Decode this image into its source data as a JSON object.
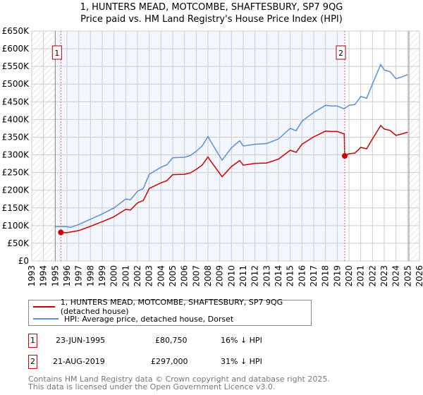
{
  "chart_data": {
    "type": "line",
    "title": "1, HUNTERS MEAD, MOTCOMBE, SHAFTESBURY, SP7 9QG",
    "subtitle": "Price paid vs. HM Land Registry's House Price Index (HPI)",
    "xlim": [
      1993,
      2026
    ],
    "ylim": [
      0,
      650000
    ],
    "x_ticks": [
      "1993",
      "1994",
      "1995",
      "1996",
      "1997",
      "1998",
      "1999",
      "2000",
      "2001",
      "2002",
      "2003",
      "2004",
      "2005",
      "2006",
      "2007",
      "2008",
      "2009",
      "2010",
      "2011",
      "2012",
      "2013",
      "2014",
      "2015",
      "2016",
      "2017",
      "2018",
      "2019",
      "2020",
      "2021",
      "2022",
      "2023",
      "2024",
      "2025",
      "2026"
    ],
    "y_ticks": [
      {
        "v": 0,
        "label": "£0"
      },
      {
        "v": 50000,
        "label": "£50K"
      },
      {
        "v": 100000,
        "label": "£100K"
      },
      {
        "v": 150000,
        "label": "£150K"
      },
      {
        "v": 200000,
        "label": "£200K"
      },
      {
        "v": 250000,
        "label": "£250K"
      },
      {
        "v": 300000,
        "label": "£300K"
      },
      {
        "v": 350000,
        "label": "£350K"
      },
      {
        "v": 400000,
        "label": "£400K"
      },
      {
        "v": 450000,
        "label": "£450K"
      },
      {
        "v": 500000,
        "label": "£500K"
      },
      {
        "v": 550000,
        "label": "£550K"
      },
      {
        "v": 600000,
        "label": "£600K"
      },
      {
        "v": 650000,
        "label": "£650K"
      }
    ],
    "grid": true,
    "hatched_ranges": [
      [
        1993,
        1995
      ],
      [
        2025.1,
        2026
      ]
    ],
    "shaded_range": [
      1995,
      2019.64
    ],
    "series": [
      {
        "name": "1, HUNTERS MEAD, MOTCOMBE, SHAFTESBURY, SP7 9QG (detached house)",
        "color": "#cc0000",
        "x": [
          1995.48,
          1996,
          1997,
          1998,
          1999,
          2000,
          2001,
          2001.4,
          2002,
          2002.5,
          2003,
          2004,
          2004.5,
          2005,
          2006,
          2006.5,
          2007,
          2007.5,
          2008,
          2008.2,
          2009.2,
          2010,
          2010.7,
          2011,
          2012,
          2013,
          2014,
          2015,
          2015.5,
          2016,
          2017,
          2018,
          2018.5,
          2019,
          2019.6,
          2019.64,
          2020,
          2020.5,
          2021,
          2021.5,
          2022,
          2022.7,
          2023,
          2023.5,
          2024,
          2024.5,
          2025
        ],
        "y": [
          80750,
          80000,
          86000,
          98000,
          111000,
          125000,
          146000,
          144000,
          164000,
          171000,
          205000,
          221000,
          227000,
          244000,
          245000,
          249000,
          259000,
          271000,
          294000,
          284000,
          238000,
          267000,
          284000,
          271000,
          276000,
          277000,
          288000,
          313000,
          307000,
          330000,
          351000,
          367000,
          366000,
          366000,
          359000,
          297000,
          303000,
          305000,
          321000,
          317000,
          345000,
          383000,
          373000,
          369000,
          355000,
          359000,
          364000
        ]
      },
      {
        "name": "HPI: Average price, detached house, Dorset",
        "color": "#5b8fd6",
        "x": [
          1995,
          1996,
          1996.3,
          1997,
          1998,
          1999,
          2000,
          2001,
          2001.4,
          2002,
          2002.5,
          2003,
          2004,
          2004.5,
          2005,
          2006,
          2006.5,
          2007,
          2007.5,
          2008,
          2008.2,
          2009.2,
          2010,
          2010.7,
          2011,
          2012,
          2013,
          2014,
          2015,
          2015.5,
          2016,
          2017,
          2018,
          2018.5,
          2019,
          2019.6,
          2020,
          2020.5,
          2021,
          2021.5,
          2022,
          2022.7,
          2023,
          2023.5,
          2024,
          2024.5,
          2025
        ],
        "y": [
          97000,
          97000,
          95000,
          103000,
          118000,
          133000,
          150000,
          175000,
          173000,
          197000,
          205000,
          245000,
          265000,
          272000,
          292000,
          293000,
          298000,
          310000,
          325000,
          352000,
          340000,
          285000,
          320000,
          340000,
          325000,
          330000,
          332000,
          345000,
          375000,
          368000,
          395000,
          420000,
          440000,
          438000,
          438000,
          430000,
          440000,
          442000,
          465000,
          460000,
          500000,
          555000,
          540000,
          535000,
          515000,
          520000,
          527000
        ]
      }
    ],
    "annotations": [
      {
        "label": "1",
        "x": 1995.48,
        "y": 80750
      },
      {
        "label": "2",
        "x": 2019.64,
        "y": 297000
      }
    ],
    "legend_position": "below"
  },
  "legend": {
    "property": "1, HUNTERS MEAD, MOTCOMBE, SHAFTESBURY, SP7 9QG (detached house)",
    "hpi": "HPI: Average price, detached house, Dorset"
  },
  "transactions": [
    {
      "num": "1",
      "date": "23-JUN-1995",
      "price": "£80,750",
      "delta": "16% ↓ HPI"
    },
    {
      "num": "2",
      "date": "21-AUG-2019",
      "price": "£297,000",
      "delta": "31% ↓ HPI"
    }
  ],
  "footer": {
    "line1": "Contains HM Land Registry data © Crown copyright and database right 2025.",
    "line2": "This data is licensed under the Open Government Licence v3.0."
  }
}
